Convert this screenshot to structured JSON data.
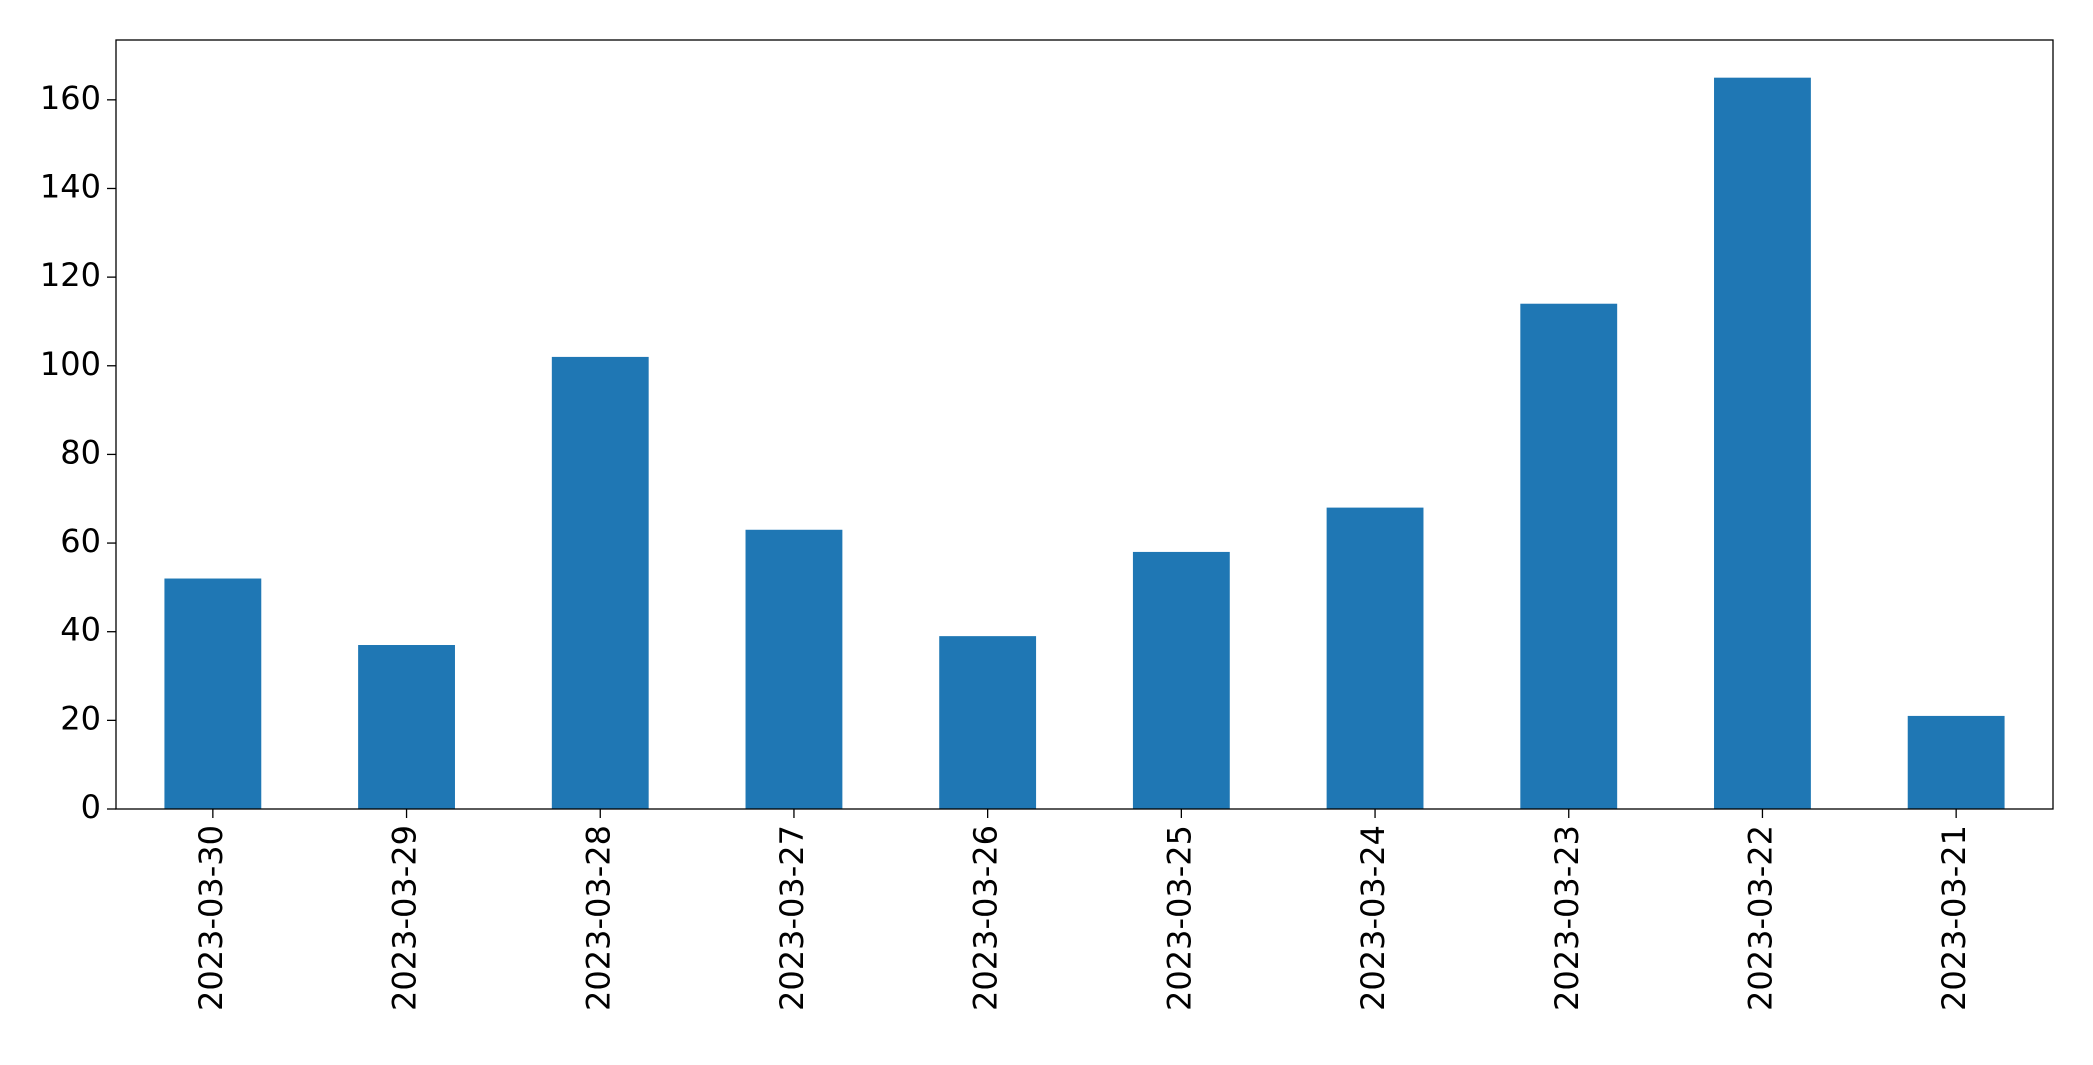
{
  "chart_data": {
    "type": "bar",
    "categories": [
      "2023-03-30",
      "2023-03-29",
      "2023-03-28",
      "2023-03-27",
      "2023-03-26",
      "2023-03-25",
      "2023-03-24",
      "2023-03-23",
      "2023-03-22",
      "2023-03-21"
    ],
    "values": [
      52,
      37,
      102,
      63,
      39,
      58,
      68,
      114,
      165,
      21
    ],
    "color": "#1f77b4",
    "ylim": [
      0,
      173.5
    ],
    "yticks": [
      0,
      20,
      40,
      60,
      80,
      100,
      120,
      140,
      160
    ],
    "grid": false
  }
}
